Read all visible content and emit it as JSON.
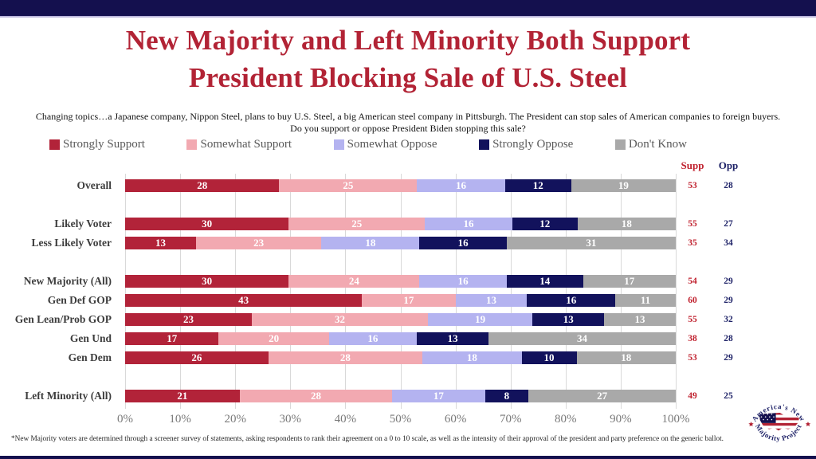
{
  "page": {
    "title_line1": "New Majority and Left Minority Both Support",
    "title_line2": "President Blocking Sale of U.S. Steel",
    "question_line1": "Changing topics…a Japanese company, Nippon Steel, plans to buy U.S. Steel, a big American steel company in Pittsburgh. The President can stop sales of American companies to foreign buyers.",
    "question_line2": "Do you support or oppose President Biden stopping this sale?",
    "footnote": "*New Majority voters are determined through a screener survey of statements, asking respondents to rank their agreement on a 0 to 10 scale, as well as the intensity  of their approval of the president and party preference on the generic ballot."
  },
  "colors": {
    "banner_navy": "#14104e",
    "title_red": "#b22335",
    "strongly_support": "#b22339",
    "somewhat_support": "#f2a9b1",
    "somewhat_oppose": "#b4b3f0",
    "strongly_oppose": "#12125c",
    "dont_know": "#a9a9a9",
    "supp_text": "#c0222f",
    "opp_text": "#1f2368",
    "gridline": "#d9d9d9"
  },
  "chart_data": {
    "type": "bar",
    "stacked": true,
    "orientation": "horizontal",
    "title": "New Majority and Left Minority Both Support President Blocking Sale of U.S. Steel",
    "legend": [
      "Strongly Support",
      "Somewhat Support",
      "Somewhat Oppose",
      "Strongly Oppose",
      "Don't Know"
    ],
    "legend_colors": [
      "#b22339",
      "#f2a9b1",
      "#b4b3f0",
      "#12125c",
      "#a9a9a9"
    ],
    "legend_position": "top",
    "grid": true,
    "xlim": [
      0,
      100
    ],
    "x_ticks": [
      "0%",
      "10%",
      "20%",
      "30%",
      "40%",
      "50%",
      "60%",
      "70%",
      "80%",
      "90%",
      "100%"
    ],
    "summary_columns": [
      "Supp",
      "Opp"
    ],
    "rows": [
      {
        "label": "Overall",
        "values": [
          28,
          25,
          16,
          12,
          19
        ],
        "supp": 53,
        "opp": 28,
        "gap_before": false
      },
      {
        "label": "Likely Voter",
        "values": [
          30,
          25,
          16,
          12,
          18
        ],
        "supp": 55,
        "opp": 27,
        "gap_before": true
      },
      {
        "label": "Less Likely Voter",
        "values": [
          13,
          23,
          18,
          16,
          31
        ],
        "supp": 35,
        "opp": 34,
        "gap_before": false
      },
      {
        "label": "New Majority (All)",
        "values": [
          30,
          24,
          16,
          14,
          17
        ],
        "supp": 54,
        "opp": 29,
        "gap_before": true
      },
      {
        "label": "Gen Def GOP",
        "values": [
          43,
          17,
          13,
          16,
          11
        ],
        "supp": 60,
        "opp": 29,
        "gap_before": false
      },
      {
        "label": "Gen Lean/Prob GOP",
        "values": [
          23,
          32,
          19,
          13,
          13
        ],
        "supp": 55,
        "opp": 32,
        "gap_before": false
      },
      {
        "label": "Gen Und",
        "values": [
          17,
          20,
          16,
          13,
          34
        ],
        "supp": 38,
        "opp": 28,
        "gap_before": false
      },
      {
        "label": "Gen Dem",
        "values": [
          26,
          28,
          18,
          10,
          18
        ],
        "supp": 53,
        "opp": 29,
        "gap_before": false
      },
      {
        "label": "Left Minority (All)",
        "values": [
          21,
          28,
          17,
          8,
          27
        ],
        "supp": 49,
        "opp": 25,
        "gap_before": true
      }
    ]
  },
  "logo": {
    "arc_top": "America's New",
    "arc_bottom": "Majority Project"
  }
}
